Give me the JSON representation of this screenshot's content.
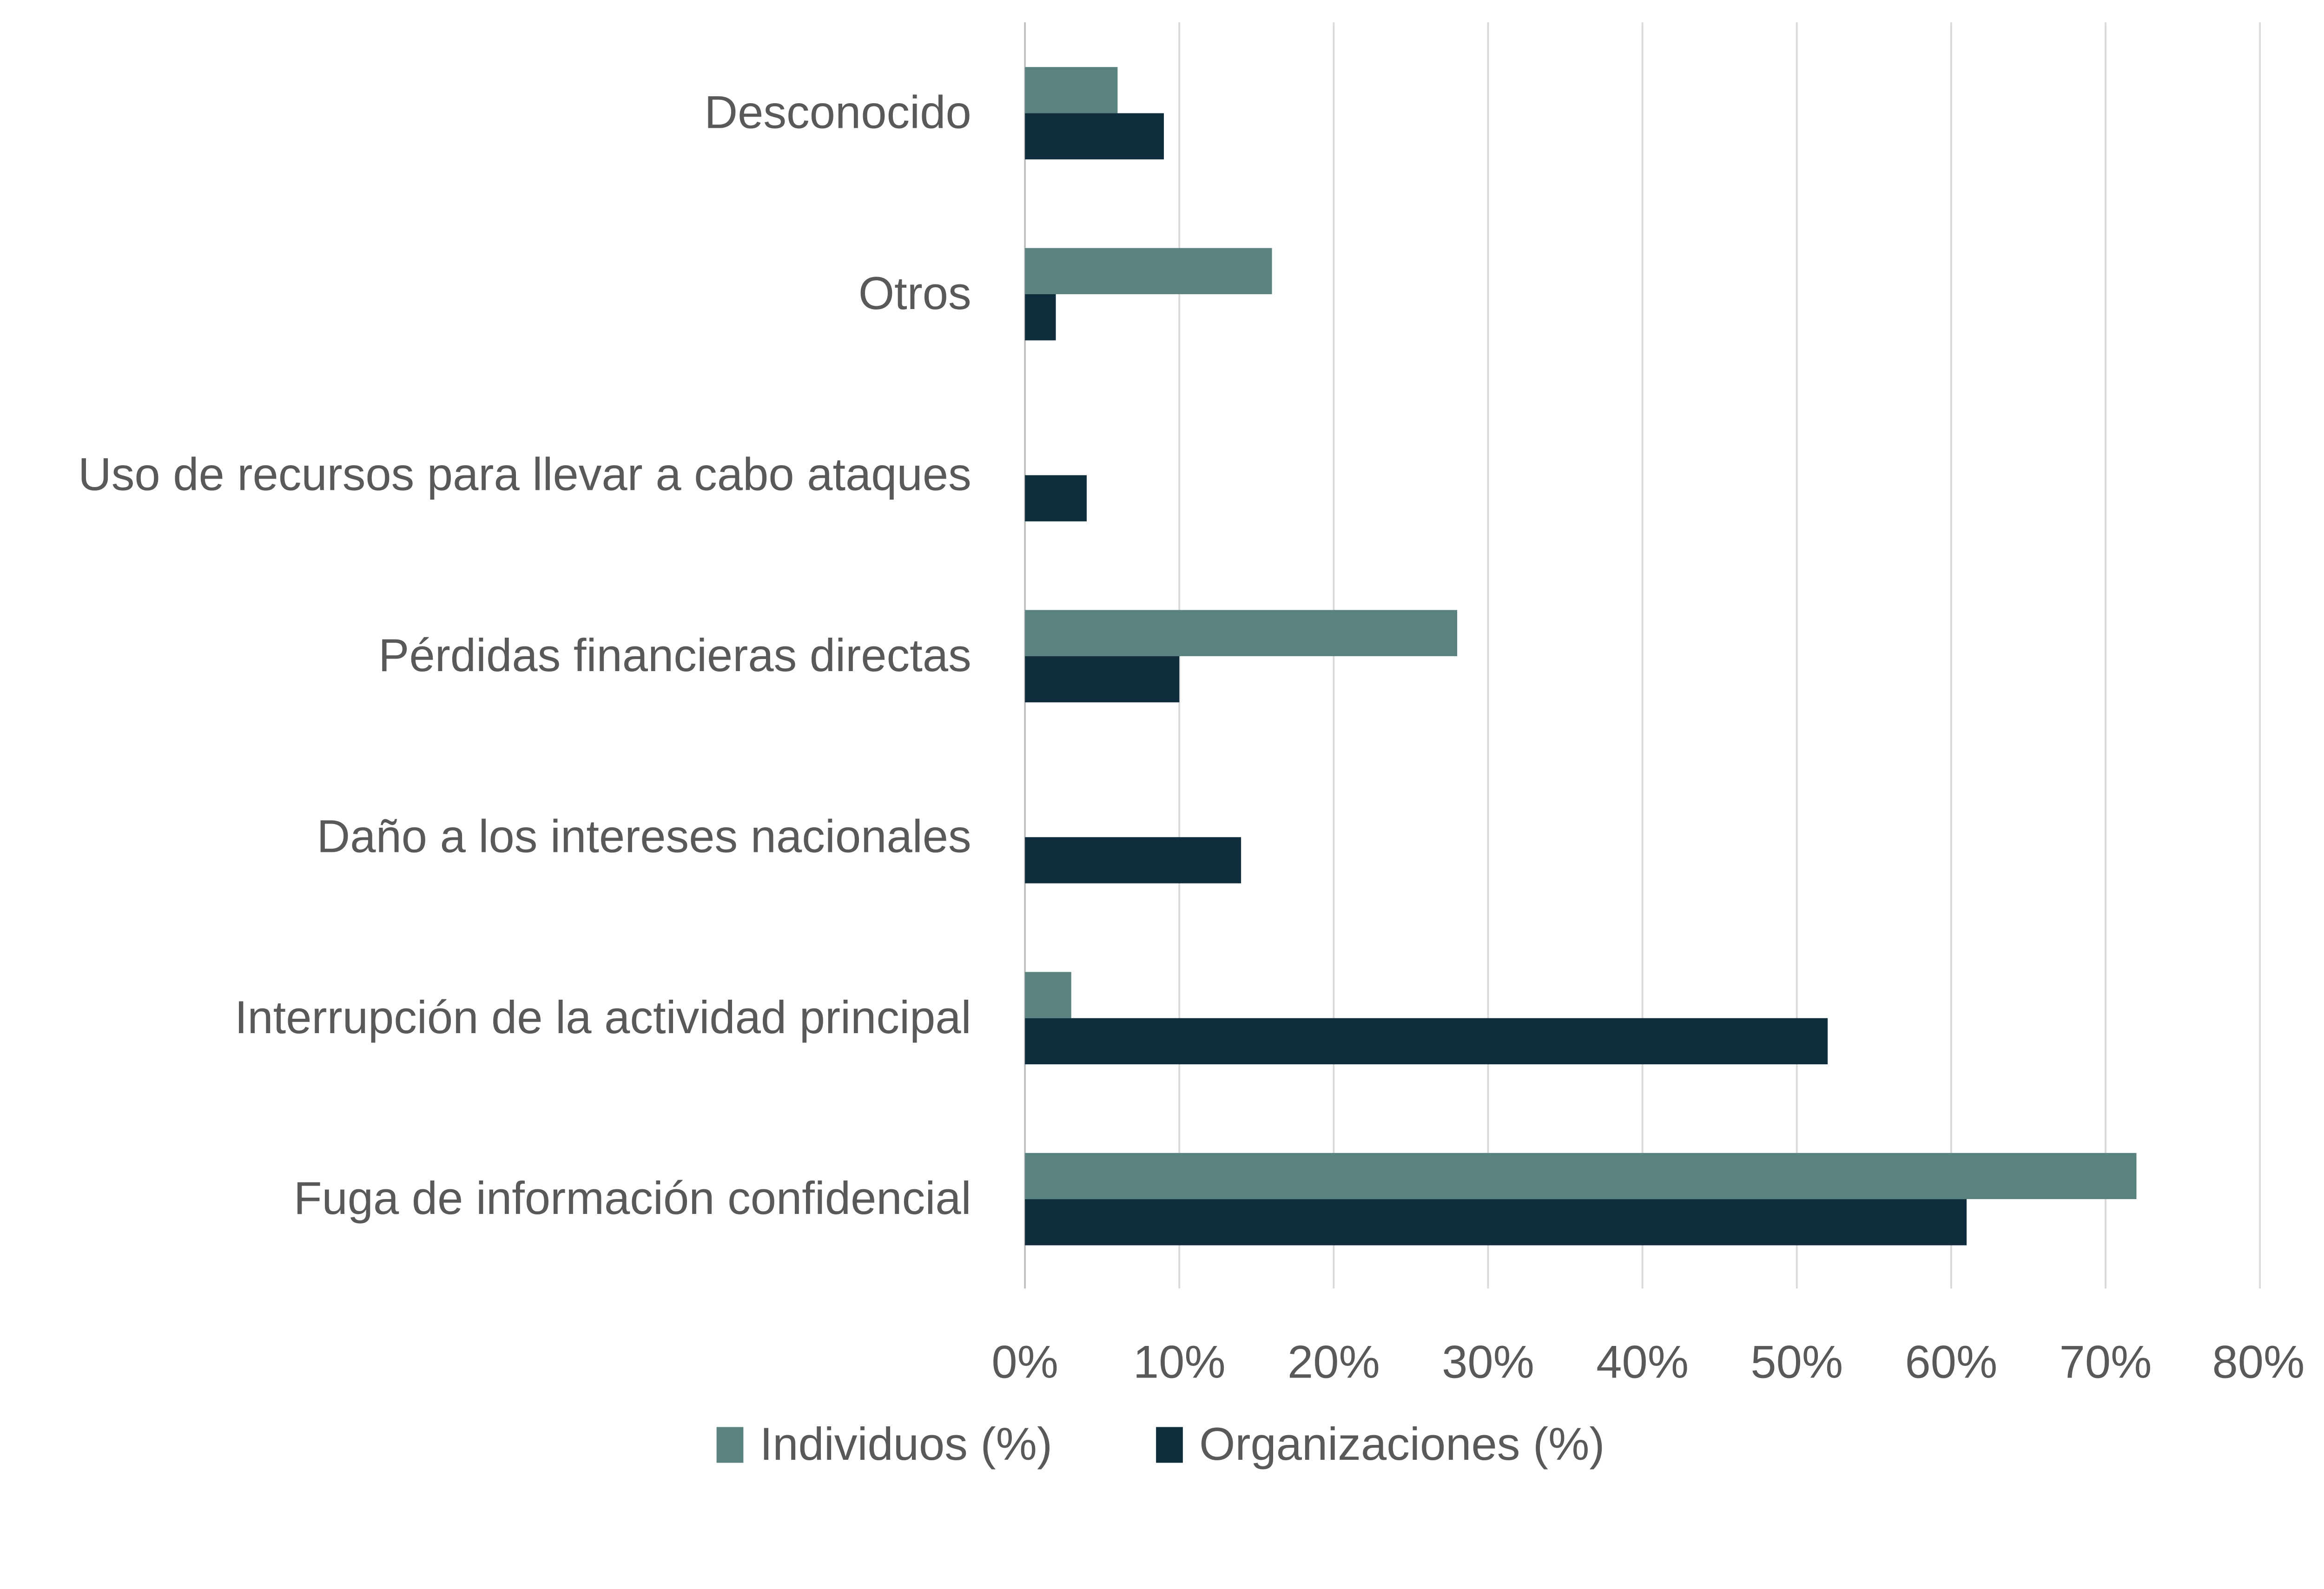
{
  "chart_data": {
    "type": "bar",
    "orientation": "horizontal",
    "title": "",
    "xlabel": "",
    "ylabel": "",
    "categories": [
      "Desconocido",
      "Otros",
      "Uso de recursos para llevar a cabo ataques",
      "Pérdidas financieras directas",
      "Daño a los intereses nacionales",
      "Interrupción de la actividad principal",
      "Fuga de información confidencial"
    ],
    "series": [
      {
        "name": "Individuos (%)",
        "color": "#5a8380",
        "values": [
          6,
          16,
          0,
          28,
          0,
          3,
          72
        ]
      },
      {
        "name": "Organizaciones (%)",
        "color": "#0f2d3d",
        "values": [
          9,
          2,
          4,
          10,
          14,
          52,
          61
        ]
      }
    ],
    "xlim": [
      0,
      80
    ],
    "xticks": [
      "0%",
      "10%",
      "20%",
      "30%",
      "40%",
      "50%",
      "60%",
      "70%",
      "80%"
    ],
    "grid": "vertical",
    "gridColor": "#d9d9d9",
    "legend": "bottom"
  }
}
